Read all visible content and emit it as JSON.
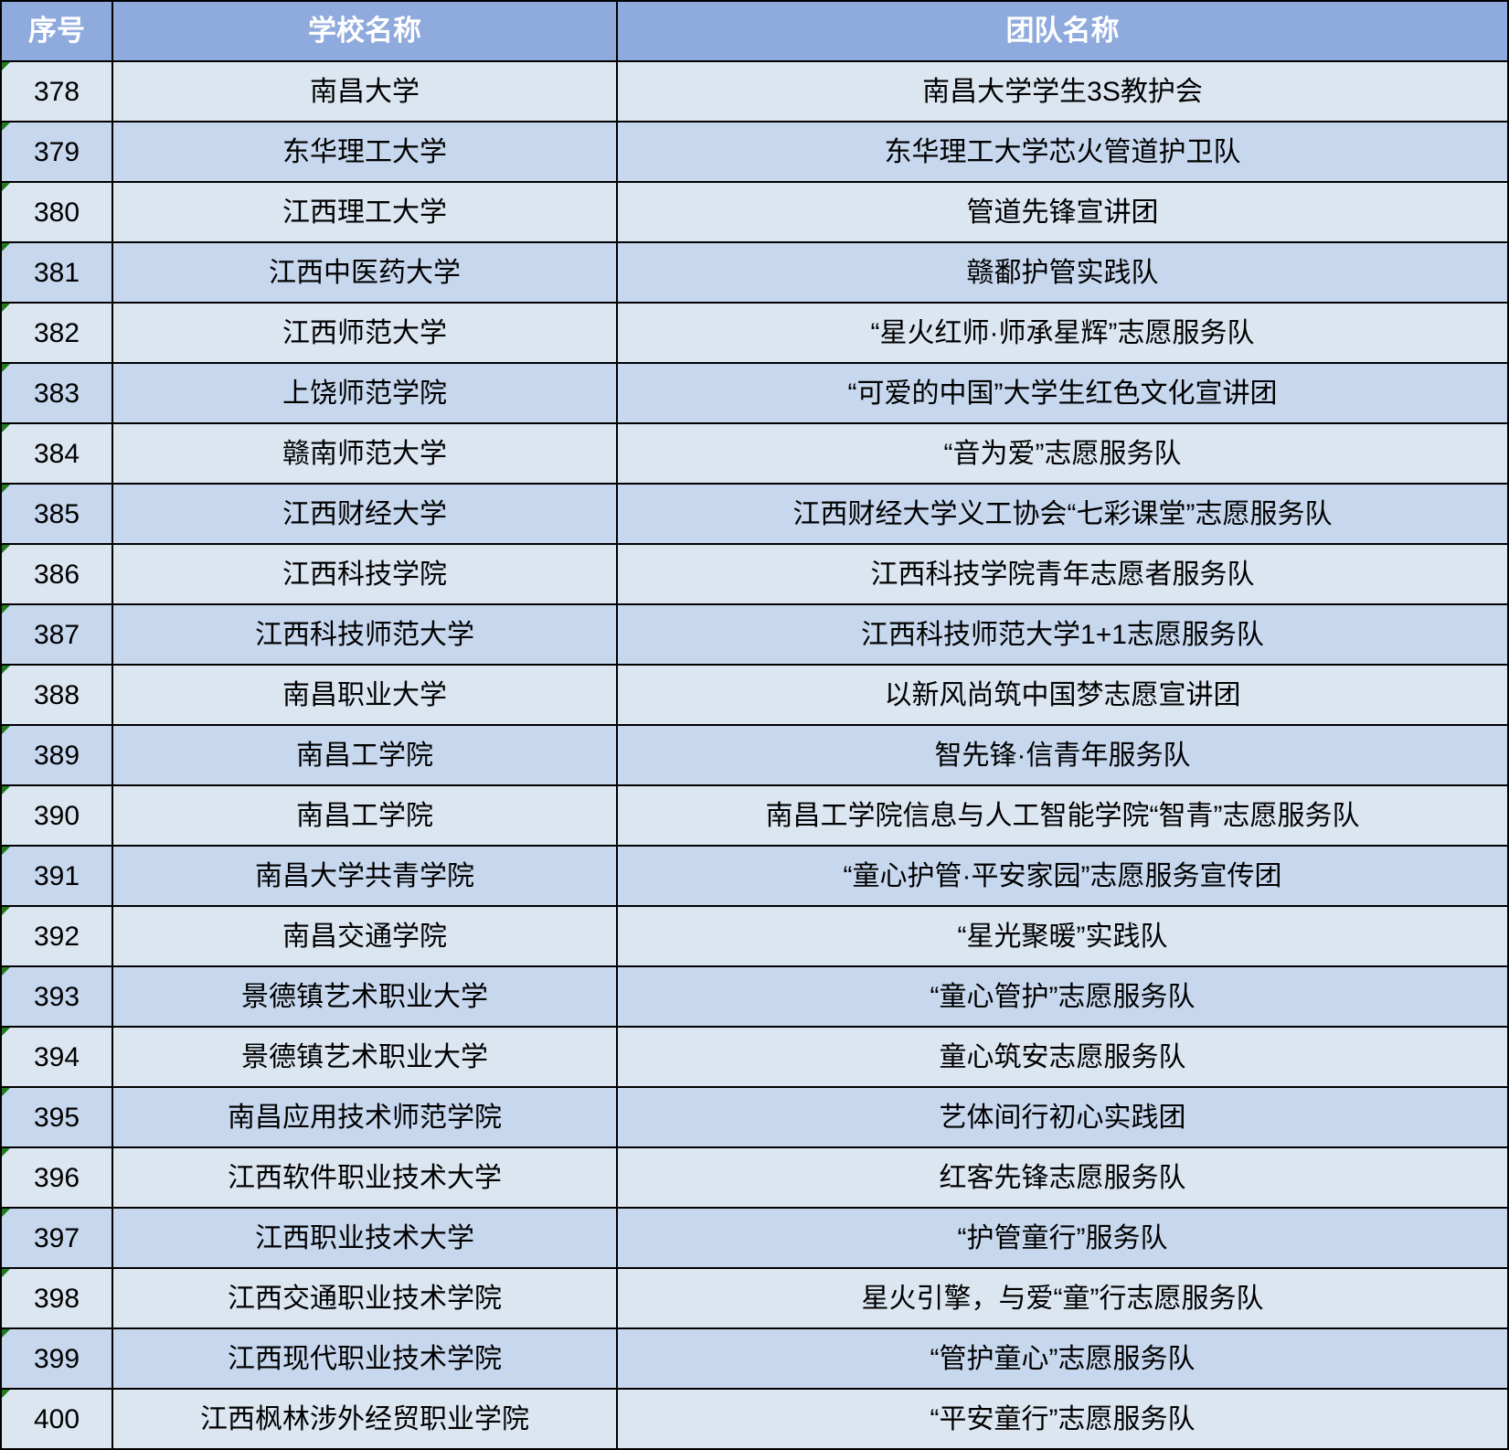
{
  "colors": {
    "header_bg": "#8faadc",
    "header_text": "#ffffff",
    "row_light": "#dce6f1",
    "row_dark": "#c7d7ee",
    "border": "#000000",
    "text": "#000000",
    "error_triangle": "#1f7a1f"
  },
  "table": {
    "columns": [
      {
        "key": "no",
        "label": "序号"
      },
      {
        "key": "school",
        "label": "学校名称"
      },
      {
        "key": "team",
        "label": "团队名称"
      }
    ],
    "rows": [
      {
        "no": "378",
        "school": "南昌大学",
        "team": "南昌大学学生3S教护会"
      },
      {
        "no": "379",
        "school": "东华理工大学",
        "team": "东华理工大学芯火管道护卫队"
      },
      {
        "no": "380",
        "school": "江西理工大学",
        "team": "管道先锋宣讲团"
      },
      {
        "no": "381",
        "school": "江西中医药大学",
        "team": "赣鄱护管实践队"
      },
      {
        "no": "382",
        "school": "江西师范大学",
        "team": "“星火红师·师承星辉”志愿服务队"
      },
      {
        "no": "383",
        "school": "上饶师范学院",
        "team": "“可爱的中国”大学生红色文化宣讲团"
      },
      {
        "no": "384",
        "school": "赣南师范大学",
        "team": "“音为爱”志愿服务队"
      },
      {
        "no": "385",
        "school": "江西财经大学",
        "team": "江西财经大学义工协会“七彩课堂”志愿服务队"
      },
      {
        "no": "386",
        "school": "江西科技学院",
        "team": "江西科技学院青年志愿者服务队"
      },
      {
        "no": "387",
        "school": "江西科技师范大学",
        "team": "江西科技师范大学1+1志愿服务队"
      },
      {
        "no": "388",
        "school": "南昌职业大学",
        "team": "以新风尚筑中国梦志愿宣讲团"
      },
      {
        "no": "389",
        "school": "南昌工学院",
        "team": "智先锋·信青年服务队"
      },
      {
        "no": "390",
        "school": "南昌工学院",
        "team": "南昌工学院信息与人工智能学院“智青”志愿服务队"
      },
      {
        "no": "391",
        "school": "南昌大学共青学院",
        "team": "“童心护管·平安家园”志愿服务宣传团"
      },
      {
        "no": "392",
        "school": "南昌交通学院",
        "team": "“星光聚暖”实践队"
      },
      {
        "no": "393",
        "school": "景德镇艺术职业大学",
        "team": "“童心管护”志愿服务队"
      },
      {
        "no": "394",
        "school": "景德镇艺术职业大学",
        "team": "童心筑安志愿服务队"
      },
      {
        "no": "395",
        "school": "南昌应用技术师范学院",
        "team": "艺体间行初心实践团"
      },
      {
        "no": "396",
        "school": "江西软件职业技术大学",
        "team": "红客先锋志愿服务队"
      },
      {
        "no": "397",
        "school": "江西职业技术大学",
        "team": "“护管童行”服务队"
      },
      {
        "no": "398",
        "school": "江西交通职业技术学院",
        "team": "星火引擎，与爱“童”行志愿服务队"
      },
      {
        "no": "399",
        "school": "江西现代职业技术学院",
        "team": "“管护童心”志愿服务队"
      },
      {
        "no": "400",
        "school": "江西枫林涉外经贸职业学院",
        "team": "“平安童行”志愿服务队"
      }
    ]
  }
}
